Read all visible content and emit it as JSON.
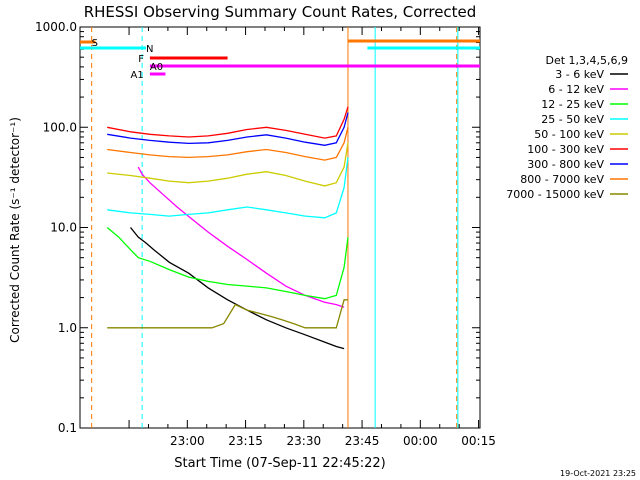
{
  "chart_data": {
    "type": "line",
    "title": "RHESSI Observing Summary Count Rates, Corrected",
    "xlabel": "Start Time (07-Sep-11 22:45:22)",
    "ylabel": "Corrected Count Rate (s⁻¹ detector⁻¹)",
    "yscale": "log",
    "ylim": [
      0.1,
      1000
    ],
    "xlim_min": [
      -13,
      90
    ],
    "x_unit": "minutes after 22:45:22",
    "yticks": [
      "0.1",
      "1.0",
      "10.0",
      "100.0",
      "1000.0"
    ],
    "xticks": [
      "23:00",
      "23:15",
      "23:30",
      "23:45",
      "00:00",
      "00:15"
    ],
    "footer": "19-Oct-2021 23:25",
    "grid": false,
    "legend_title": "Det 1,3,4,5,6,9",
    "legend_position": "right",
    "series": [
      {
        "name": "3 - 6 keV",
        "color": "#000000",
        "x": [
          0,
          2,
          4,
          6,
          10,
          15,
          20,
          25,
          30,
          35,
          40,
          45,
          50,
          53,
          55
        ],
        "y": [
          10.0,
          8.0,
          7.0,
          6.0,
          4.5,
          3.5,
          2.5,
          1.9,
          1.5,
          1.2,
          1.0,
          0.85,
          0.72,
          0.65,
          0.62
        ]
      },
      {
        "name": "6 - 12 keV",
        "color": "#ff00ff",
        "x": [
          2,
          3,
          5,
          8,
          12,
          16,
          20,
          25,
          30,
          35,
          40,
          45,
          50,
          53,
          55
        ],
        "y": [
          40,
          34,
          28,
          22,
          16,
          12,
          9.0,
          6.5,
          4.8,
          3.5,
          2.6,
          2.1,
          1.8,
          1.7,
          1.6
        ]
      },
      {
        "name": "12 - 25 keV",
        "color": "#00ff00",
        "x": [
          -6,
          -3,
          0,
          2,
          5,
          10,
          15,
          20,
          25,
          30,
          35,
          40,
          45,
          50,
          53,
          55,
          56
        ],
        "y": [
          10,
          8,
          6,
          5,
          4.6,
          3.8,
          3.2,
          2.9,
          2.7,
          2.6,
          2.5,
          2.3,
          2.1,
          1.95,
          2.1,
          4.0,
          8.0
        ]
      },
      {
        "name": "25 - 50 keV",
        "color": "#00ffff",
        "x": [
          -6,
          0,
          5,
          10,
          15,
          20,
          25,
          30,
          35,
          40,
          45,
          50,
          53,
          55,
          56
        ],
        "y": [
          15,
          14,
          13.5,
          13,
          13.5,
          14,
          15,
          16,
          15,
          14,
          13,
          12.5,
          14,
          25,
          50
        ]
      },
      {
        "name": "50 - 100 keV",
        "color": "#cccc00",
        "x": [
          -6,
          0,
          5,
          10,
          15,
          20,
          25,
          30,
          35,
          40,
          45,
          50,
          53,
          55,
          56
        ],
        "y": [
          35,
          33,
          31,
          29,
          28,
          29,
          31,
          34,
          36,
          33,
          29,
          26,
          28,
          40,
          70
        ]
      },
      {
        "name": "100 - 300 keV",
        "color": "#ff0000",
        "x": [
          -6,
          0,
          5,
          10,
          15,
          20,
          25,
          30,
          35,
          40,
          45,
          50,
          53,
          55,
          56
        ],
        "y": [
          100,
          90,
          85,
          82,
          80,
          82,
          87,
          95,
          100,
          93,
          85,
          78,
          82,
          120,
          160
        ]
      },
      {
        "name": "300 - 800 keV",
        "color": "#0000ff",
        "x": [
          -6,
          0,
          5,
          10,
          15,
          20,
          25,
          30,
          35,
          40,
          45,
          50,
          53,
          55,
          56
        ],
        "y": [
          85,
          78,
          74,
          71,
          69,
          70,
          74,
          80,
          84,
          78,
          71,
          66,
          70,
          100,
          140
        ]
      },
      {
        "name": "800 - 7000 keV",
        "color": "#ff7700",
        "x": [
          -6,
          0,
          5,
          10,
          15,
          20,
          25,
          30,
          35,
          40,
          45,
          50,
          53,
          55,
          56
        ],
        "y": [
          60,
          56,
          53,
          51,
          50,
          51,
          53,
          57,
          60,
          56,
          51,
          47,
          50,
          70,
          100
        ]
      },
      {
        "name": "7000 - 15000 keV",
        "color": "#888800",
        "x": [
          -6,
          -3,
          0,
          3,
          6,
          9,
          12,
          15,
          18,
          21,
          24,
          27,
          30,
          33,
          36,
          39,
          42,
          45,
          48,
          51,
          53,
          55,
          56
        ],
        "y": [
          1.0,
          1.0,
          1.0,
          1.0,
          1.0,
          1.0,
          1.0,
          1.0,
          1.0,
          1.0,
          1.1,
          1.7,
          1.5,
          1.4,
          1.3,
          1.2,
          1.1,
          1.0,
          1.0,
          1.0,
          1.0,
          1.9,
          1.9
        ]
      }
    ],
    "flags": [
      {
        "label": "S",
        "color": "#ff7700",
        "from": -13,
        "to": -9,
        "label_x": -10
      },
      {
        "label": "N",
        "color": "#00ffff",
        "from": -13,
        "to": 4,
        "label_x": 4
      },
      {
        "label": "F",
        "color": "#ff0000",
        "from": 5,
        "to": 25,
        "label_x": 2
      },
      {
        "label": "A0",
        "color": "#ff00ff",
        "from": 5,
        "to": 90,
        "label_x": 5
      },
      {
        "label": "A1",
        "color": "#ff00ff",
        "from": 5,
        "to": 9,
        "label_x": 0
      }
    ],
    "markers": [
      {
        "x": -10,
        "color": "#ff7700",
        "dash": true
      },
      {
        "x": 3,
        "color": "#00ffff",
        "dash": true
      },
      {
        "x": 56,
        "color": "#ff7700",
        "dash": false
      },
      {
        "x": 63,
        "color": "#00ffff",
        "dash": false
      },
      {
        "x": 84,
        "color": "#ff7700",
        "dash": true
      },
      {
        "x": 84.3,
        "color": "#00ffff",
        "dash": false
      }
    ],
    "right_flags": [
      {
        "color": "#ff7700",
        "from": 56,
        "to": 90
      },
      {
        "color": "#00ffff",
        "from": 61,
        "to": 90
      }
    ]
  }
}
